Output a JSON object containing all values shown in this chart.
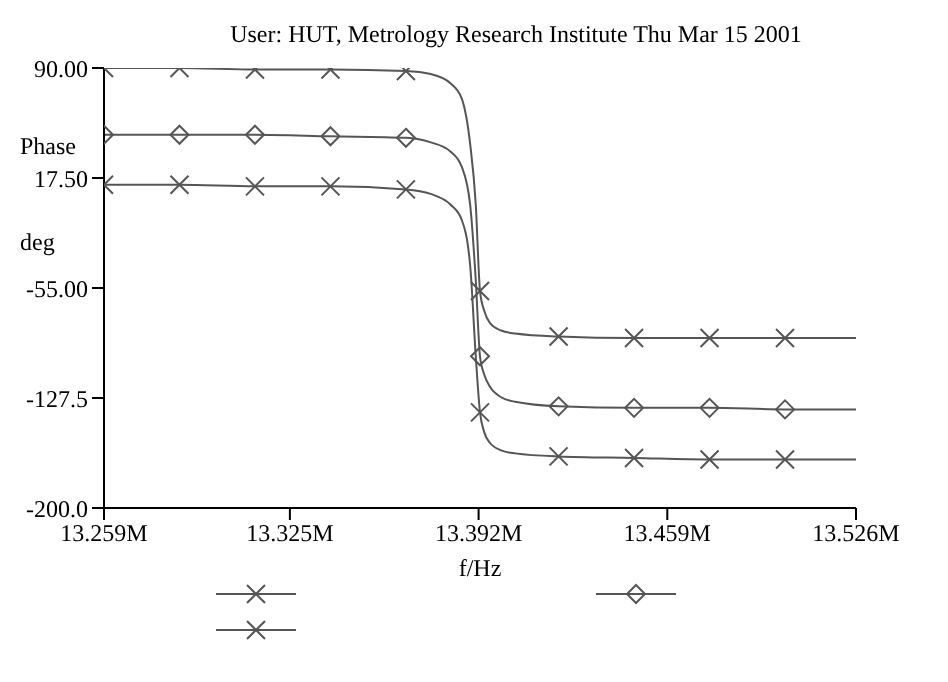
{
  "chart_data": {
    "type": "line",
    "title": "User: HUT, Metrology Research Institute Thu Mar 15 2001",
    "xlabel": "f/Hz",
    "ylabel": "Phase deg",
    "x": [
      13259000,
      13285800,
      13312600,
      13339400,
      13366200,
      13375000,
      13382000,
      13386000,
      13389000,
      13391000,
      13392500,
      13394000,
      13396000,
      13400000,
      13405000,
      13420400,
      13447200,
      13474000,
      13500800,
      13526000
    ],
    "series": [
      {
        "color": "#555555",
        "marker": "cross",
        "values": [
          90,
          90,
          89,
          89,
          88,
          86,
          80,
          70,
          40,
          0,
          -57,
          -70,
          -78,
          -83,
          -85,
          -87,
          -88,
          -88,
          -88,
          -88
        ]
      },
      {
        "color": "#555555",
        "marker": "diamond",
        "values": [
          46,
          46,
          46,
          45,
          44,
          41,
          35,
          25,
          0,
          -50,
          -100,
          -112,
          -120,
          -127,
          -130,
          -133,
          -134,
          -134,
          -135,
          -135
        ]
      },
      {
        "color": "#555555",
        "marker": "cross",
        "values": [
          13,
          13,
          12,
          12,
          10,
          7,
          0,
          -10,
          -40,
          -100,
          -137,
          -150,
          -157,
          -162,
          -164,
          -166,
          -167,
          -168,
          -168,
          -168
        ]
      }
    ],
    "xlim": [
      13259000,
      13526000
    ],
    "xticks": [
      {
        "value": 13259000,
        "label": "13.259M"
      },
      {
        "value": 13325000,
        "label": "13.325M"
      },
      {
        "value": 13392000,
        "label": "13.392M"
      },
      {
        "value": 13459000,
        "label": "13.459M"
      },
      {
        "value": 13526000,
        "label": "13.526M"
      }
    ],
    "ylim": [
      -200,
      90
    ],
    "yticks": [
      {
        "value": 90,
        "label": "90.00"
      },
      {
        "value": 17.5,
        "label": "17.50"
      },
      {
        "value": -55,
        "label": "-55.00"
      },
      {
        "value": -127.5,
        "label": "-127.5"
      },
      {
        "value": -200,
        "label": "-200.0"
      }
    ],
    "grid": false,
    "line_style": "solid"
  }
}
